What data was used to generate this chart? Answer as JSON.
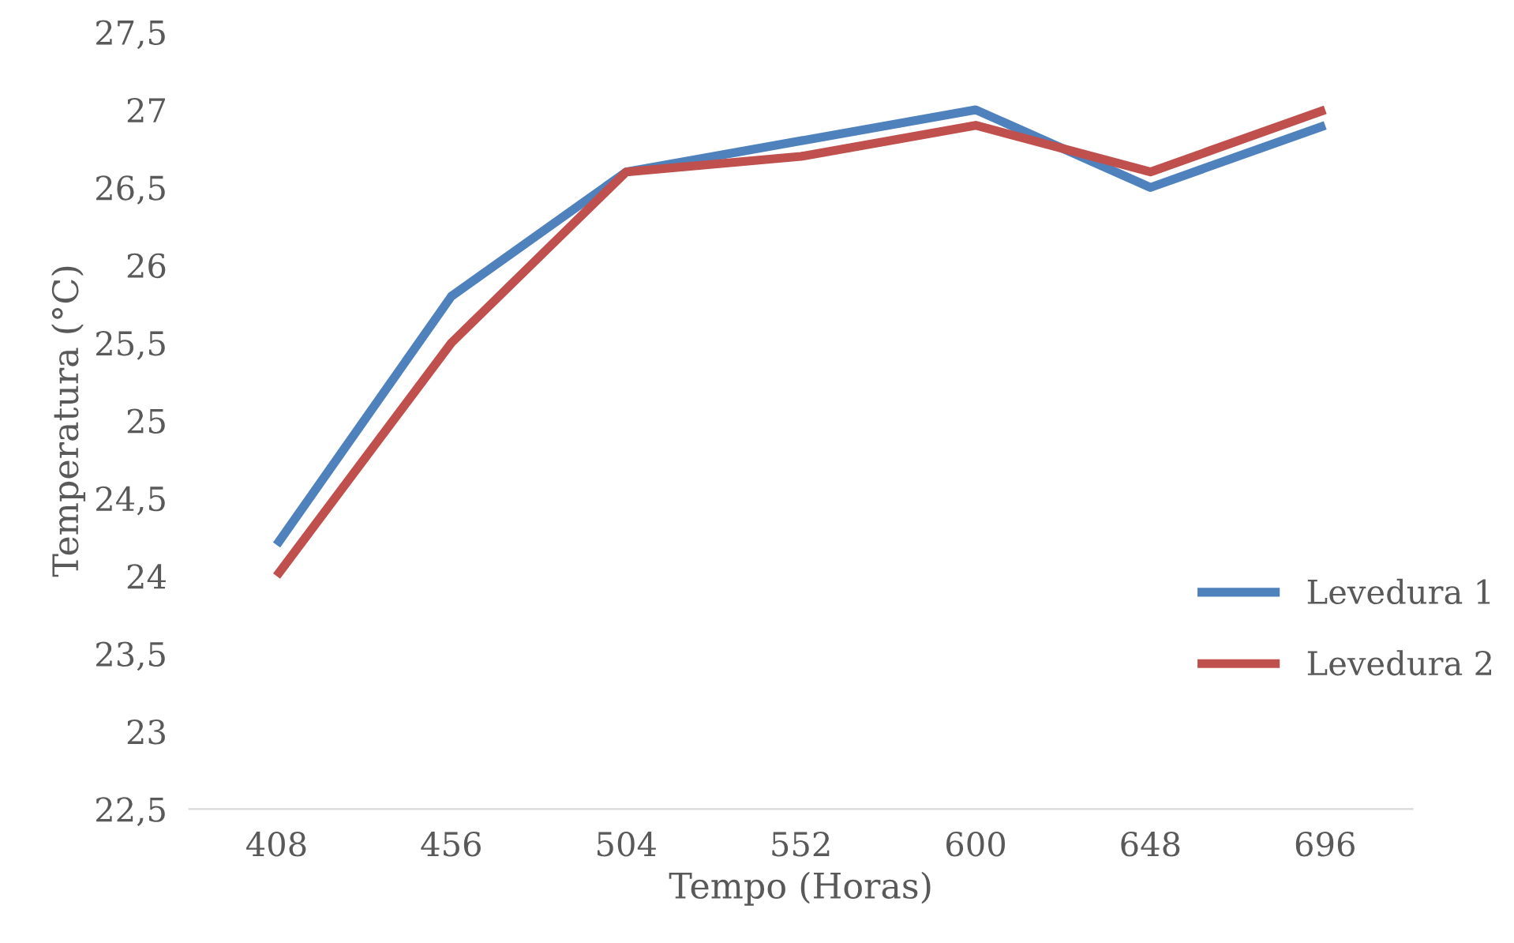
{
  "chart_data": {
    "type": "line",
    "xlabel": "Tempo (Horas)",
    "ylabel": "Temperatura (°C)",
    "categories": [
      "408",
      "456",
      "504",
      "552",
      "600",
      "648",
      "696"
    ],
    "series": [
      {
        "name": "Levedura 1",
        "color": "#4f81bd",
        "values": [
          24.2,
          25.8,
          26.6,
          26.8,
          27.0,
          26.5,
          26.9
        ]
      },
      {
        "name": "Levedura 2",
        "color": "#c0504d",
        "values": [
          24.0,
          25.5,
          26.6,
          26.7,
          26.9,
          26.6,
          27.0
        ]
      }
    ],
    "ylim": [
      22.5,
      27.5
    ],
    "yticks": [
      {
        "value": 22.5,
        "label": "22,5"
      },
      23,
      {
        "value": 23.5,
        "label": "23,5"
      },
      24,
      {
        "value": 24.5,
        "label": "24,5"
      },
      25,
      {
        "value": 25.5,
        "label": "25,5"
      },
      26,
      {
        "value": 26.5,
        "label": "26,5"
      },
      27,
      {
        "value": 27.5,
        "label": "27,5"
      }
    ],
    "grid": false,
    "legend": "right",
    "marker": "none",
    "line_style": "solid"
  }
}
